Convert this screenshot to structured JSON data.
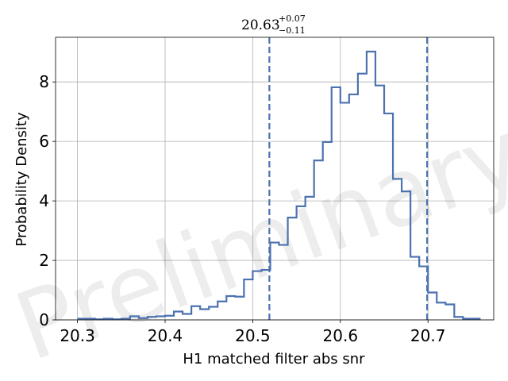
{
  "chart_data": {
    "type": "histogram",
    "title": {
      "main": "20.63",
      "sup": "+0.07",
      "sub": "−0.11"
    },
    "xlabel": "H1 matched filter abs snr",
    "ylabel": "Probability Density",
    "watermark": "Preliminary",
    "xlim": [
      20.275,
      20.775
    ],
    "ylim": [
      0,
      9.5
    ],
    "xticks": [
      20.3,
      20.4,
      20.5,
      20.6,
      20.7
    ],
    "xtick_labels": [
      "20.3",
      "20.4",
      "20.5",
      "20.6",
      "20.7"
    ],
    "yticks": [
      0,
      2,
      4,
      6,
      8
    ],
    "ytick_labels": [
      "0",
      "2",
      "4",
      "6",
      "8"
    ],
    "grid": true,
    "bin_edges_start": 20.3,
    "bin_width": 0.01,
    "density": [
      0.04,
      0.04,
      0.02,
      0.04,
      0.02,
      0.04,
      0.12,
      0.06,
      0.1,
      0.12,
      0.14,
      0.28,
      0.2,
      0.46,
      0.36,
      0.44,
      0.62,
      0.8,
      0.78,
      1.36,
      1.64,
      1.68,
      2.6,
      2.52,
      3.44,
      3.82,
      4.14,
      5.36,
      5.98,
      7.82,
      7.3,
      7.58,
      8.28,
      9.02,
      7.88,
      6.94,
      4.74,
      4.32,
      2.12,
      1.8,
      0.92,
      0.58,
      0.52,
      0.1,
      0.04,
      0.04
    ],
    "vlines": [
      20.519,
      20.699
    ],
    "colors": {
      "line": "#4c72b0",
      "vline": "#4c72b0",
      "grid": "#b0b0b0"
    }
  }
}
